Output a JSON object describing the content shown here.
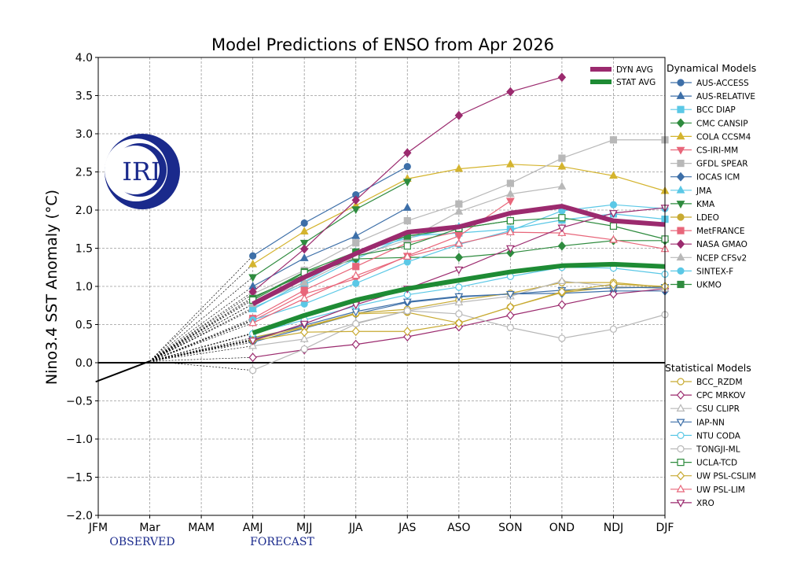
{
  "chart_data": {
    "type": "line",
    "title": "Model Predictions of ENSO from Apr 2026",
    "ylabel": "Nino3.4 SST Anomaly (°C)",
    "ylim": [
      -2.0,
      4.0
    ],
    "grid": true,
    "categories": [
      "JFM",
      "Mar",
      "MAM",
      "AMJ",
      "MJJ",
      "JJA",
      "JAS",
      "ASO",
      "SON",
      "OND",
      "NDJ",
      "DJF"
    ],
    "yticks": [
      "−2.0",
      "−1.5",
      "−1.0",
      "−0.5",
      "0.0",
      "0.5",
      "1.0",
      "1.5",
      "2.0",
      "2.5",
      "3.0",
      "3.5",
      "4.0"
    ],
    "annotations": {
      "observed": "OBSERVED",
      "forecast": "FORECAST"
    },
    "logo_text": "IRI",
    "observed": {
      "x": [
        -0.05,
        1
      ],
      "values": [
        -0.25,
        0.02
      ]
    },
    "dyn_header": "Dynamical Models",
    "stat_header": "Statistical Models",
    "averages": [
      {
        "name": "DYN AVG",
        "color": "#9b2a6e",
        "values": [
          0.77,
          1.12,
          1.43,
          1.71,
          1.78,
          1.96,
          2.05,
          1.86,
          1.81
        ]
      },
      {
        "name": "STAT AVG",
        "color": "#1e8b34",
        "values": [
          0.39,
          0.62,
          0.82,
          0.97,
          1.08,
          1.19,
          1.27,
          1.29,
          1.26
        ]
      }
    ],
    "dynamical": [
      {
        "name": "AUS-ACCESS",
        "color": "#3d6fa8",
        "marker": "circle",
        "fill": true,
        "values": [
          1.4,
          1.83,
          2.2,
          2.57
        ]
      },
      {
        "name": "AUS-RELATIVE",
        "color": "#3d6fa8",
        "marker": "triangle-up",
        "fill": true,
        "values": [
          1.0,
          1.37,
          1.66,
          2.03
        ]
      },
      {
        "name": "BCC DIAP",
        "color": "#5bc8e6",
        "marker": "square",
        "fill": true,
        "values": [
          0.72,
          1.02,
          1.36,
          1.66,
          1.7,
          1.75,
          1.87,
          1.95,
          1.88
        ]
      },
      {
        "name": "CMC CANSIP",
        "color": "#2e8b3e",
        "marker": "diamond",
        "fill": true,
        "values": [
          0.86,
          1.15,
          1.36,
          1.38,
          1.38,
          1.44,
          1.53,
          1.6,
          1.6
        ]
      },
      {
        "name": "COLA CCSM4",
        "color": "#d4b42e",
        "marker": "triangle-up",
        "fill": true,
        "values": [
          1.29,
          1.72,
          2.06,
          2.41,
          2.54,
          2.6,
          2.57,
          2.45,
          2.25
        ]
      },
      {
        "name": "CS-IRI-MM",
        "color": "#e8667a",
        "marker": "triangle-down",
        "fill": true,
        "values": [
          0.55,
          0.9,
          1.1,
          1.4,
          1.66,
          2.12
        ]
      },
      {
        "name": "GFDL SPEAR",
        "color": "#b8b8b8",
        "marker": "square",
        "fill": true,
        "values": [
          0.9,
          1.21,
          1.57,
          1.86,
          2.08,
          2.35,
          2.68,
          2.92,
          2.92
        ]
      },
      {
        "name": "IOCAS ICM",
        "color": "#3d6fa8",
        "marker": "diamond",
        "fill": true,
        "values": [
          0.27,
          0.45,
          0.64,
          0.79,
          0.86,
          0.9,
          0.91,
          0.94,
          0.94
        ]
      },
      {
        "name": "JMA",
        "color": "#5bc8e6",
        "marker": "triangle-up",
        "fill": true,
        "values": [
          0.7,
          1.06,
          1.45,
          1.63,
          1.78
        ]
      },
      {
        "name": "KMA",
        "color": "#2e8b3e",
        "marker": "triangle-down",
        "fill": true,
        "values": [
          1.12,
          1.57,
          2.01,
          2.37
        ]
      },
      {
        "name": "LDEO",
        "color": "#c8aa32",
        "marker": "circle",
        "fill": true,
        "values": [
          0.3,
          0.46,
          0.64,
          0.66,
          0.52,
          0.73,
          0.92,
          0.99,
          0.99
        ]
      },
      {
        "name": "MetFRANCE",
        "color": "#e8667a",
        "marker": "square",
        "fill": true,
        "values": [
          0.58,
          0.95,
          1.26,
          1.57,
          1.72
        ]
      },
      {
        "name": "NASA GMAO",
        "color": "#9b2a6e",
        "marker": "diamond",
        "fill": true,
        "values": [
          0.93,
          1.49,
          2.13,
          2.75,
          3.24,
          3.55,
          3.74
        ]
      },
      {
        "name": "NCEP CFSv2",
        "color": "#b8b8b8",
        "marker": "triangle-up",
        "fill": true,
        "values": [
          0.77,
          1.05,
          1.39,
          1.61,
          1.98,
          2.21,
          2.31
        ]
      },
      {
        "name": "SINTEX-F",
        "color": "#5bc8e6",
        "marker": "circle",
        "fill": true,
        "values": [
          0.56,
          0.77,
          1.04,
          1.32,
          1.55,
          1.73,
          1.99,
          2.07,
          2.02
        ]
      },
      {
        "name": "UKMO",
        "color": "#2e8b3e",
        "marker": "square",
        "fill": true,
        "values": [
          0.84,
          1.19,
          1.45,
          1.66,
          1.76,
          1.86
        ]
      }
    ],
    "statistical": [
      {
        "name": "BCC_RZDM",
        "color": "#c8aa32",
        "marker": "circle",
        "fill": false,
        "values": [
          0.33,
          0.47,
          0.65,
          0.7,
          0.82,
          0.91,
          1.05,
          1.05,
          0.99
        ]
      },
      {
        "name": "CPC MRKOV",
        "color": "#9b2a6e",
        "marker": "diamond",
        "fill": false,
        "values": [
          0.07,
          0.17,
          0.24,
          0.34,
          0.47,
          0.62,
          0.76,
          0.9,
          0.97
        ]
      },
      {
        "name": "CSU CLIPR",
        "color": "#b8b8b8",
        "marker": "triangle-up",
        "fill": false,
        "values": [
          0.22,
          0.31,
          0.52,
          0.68,
          0.79,
          0.87,
          1.07,
          1.0,
          0.97
        ]
      },
      {
        "name": "IAP-NN",
        "color": "#3d6fa8",
        "marker": "triangle-down",
        "fill": false,
        "values": [
          0.31,
          0.49,
          0.67,
          0.8,
          0.87,
          0.9,
          0.95,
          0.98,
          0.99
        ]
      },
      {
        "name": "NTU CODA",
        "color": "#5bc8e6",
        "marker": "circle",
        "fill": false,
        "values": [
          0.38,
          0.56,
          0.74,
          0.89,
          0.99,
          1.13,
          1.25,
          1.24,
          1.16
        ]
      },
      {
        "name": "TONGJI-ML",
        "color": "#b8b8b8",
        "marker": "circle",
        "fill": false,
        "values": [
          -0.1,
          0.18,
          0.51,
          0.68,
          0.64,
          0.46,
          0.32,
          0.44,
          0.63
        ]
      },
      {
        "name": "UCLA-TCD",
        "color": "#2e8b3e",
        "marker": "square",
        "fill": false,
        "values": [
          0.82,
          1.18,
          1.4,
          1.53,
          1.76,
          1.86,
          1.9,
          1.79,
          1.62
        ]
      },
      {
        "name": "UW PSL-CSLIM",
        "color": "#c8aa32",
        "marker": "diamond",
        "fill": false,
        "values": [
          0.29,
          0.4,
          0.41,
          0.41,
          0.52,
          0.73,
          0.93,
          1.03,
          1.0
        ]
      },
      {
        "name": "UW PSL-LIM",
        "color": "#e8667a",
        "marker": "triangle-up",
        "fill": false,
        "values": [
          0.52,
          0.84,
          1.14,
          1.39,
          1.56,
          1.71,
          1.7,
          1.61,
          1.49
        ]
      },
      {
        "name": "XRO",
        "color": "#9b2a6e",
        "marker": "triangle-down",
        "fill": false,
        "values": [
          0.29,
          0.51,
          0.76,
          0.97,
          1.22,
          1.5,
          1.77,
          1.96,
          2.03
        ]
      }
    ]
  }
}
